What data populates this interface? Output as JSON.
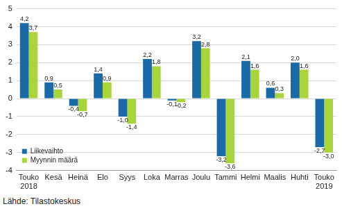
{
  "chart_data": {
    "type": "bar",
    "source": "Lähde: Tilastokeskus",
    "categories": [
      [
        "Touko",
        "2018"
      ],
      "Kesä",
      "Heinä",
      "Elo",
      "Syys",
      "Loka",
      "Marras",
      "Joulu",
      "Tammi",
      "Helmi",
      "Maalis",
      "Huhti",
      [
        "Touko",
        "2019"
      ]
    ],
    "series": [
      {
        "name": "Liikevaihto",
        "color": "#1a6aa8",
        "values": [
          4.2,
          0.9,
          -0.4,
          1.4,
          -1.0,
          2.2,
          -0.1,
          3.2,
          -3.2,
          2.1,
          0.6,
          2.0,
          -2.7
        ],
        "value_labels": [
          "4,2",
          "0,9",
          "-0,4",
          "1,4",
          "-1,0",
          "2,2",
          "-0,1",
          "3,2",
          "-3,2",
          "2,1",
          "0,6",
          "2,0",
          "-2,7"
        ]
      },
      {
        "name": "Myynnin määrä",
        "color": "#a8d63a",
        "values": [
          3.7,
          0.5,
          -0.7,
          0.9,
          -1.4,
          1.8,
          -0.2,
          2.8,
          -3.6,
          1.6,
          0.3,
          1.6,
          -3.0
        ],
        "value_labels": [
          "3,7",
          "0,5",
          "-0,7",
          "0,9",
          "-1,4",
          "1,8",
          "-0,2",
          "2,8",
          "-3,6",
          "1,6",
          "0,3",
          "1,6",
          "-3,0"
        ]
      }
    ],
    "ylim": [
      -4,
      5
    ],
    "yticks": [
      -4,
      -3,
      -2,
      -1,
      0,
      1,
      2,
      3,
      4,
      5
    ],
    "grid": true,
    "legend": "lower left",
    "data_labels": true
  }
}
